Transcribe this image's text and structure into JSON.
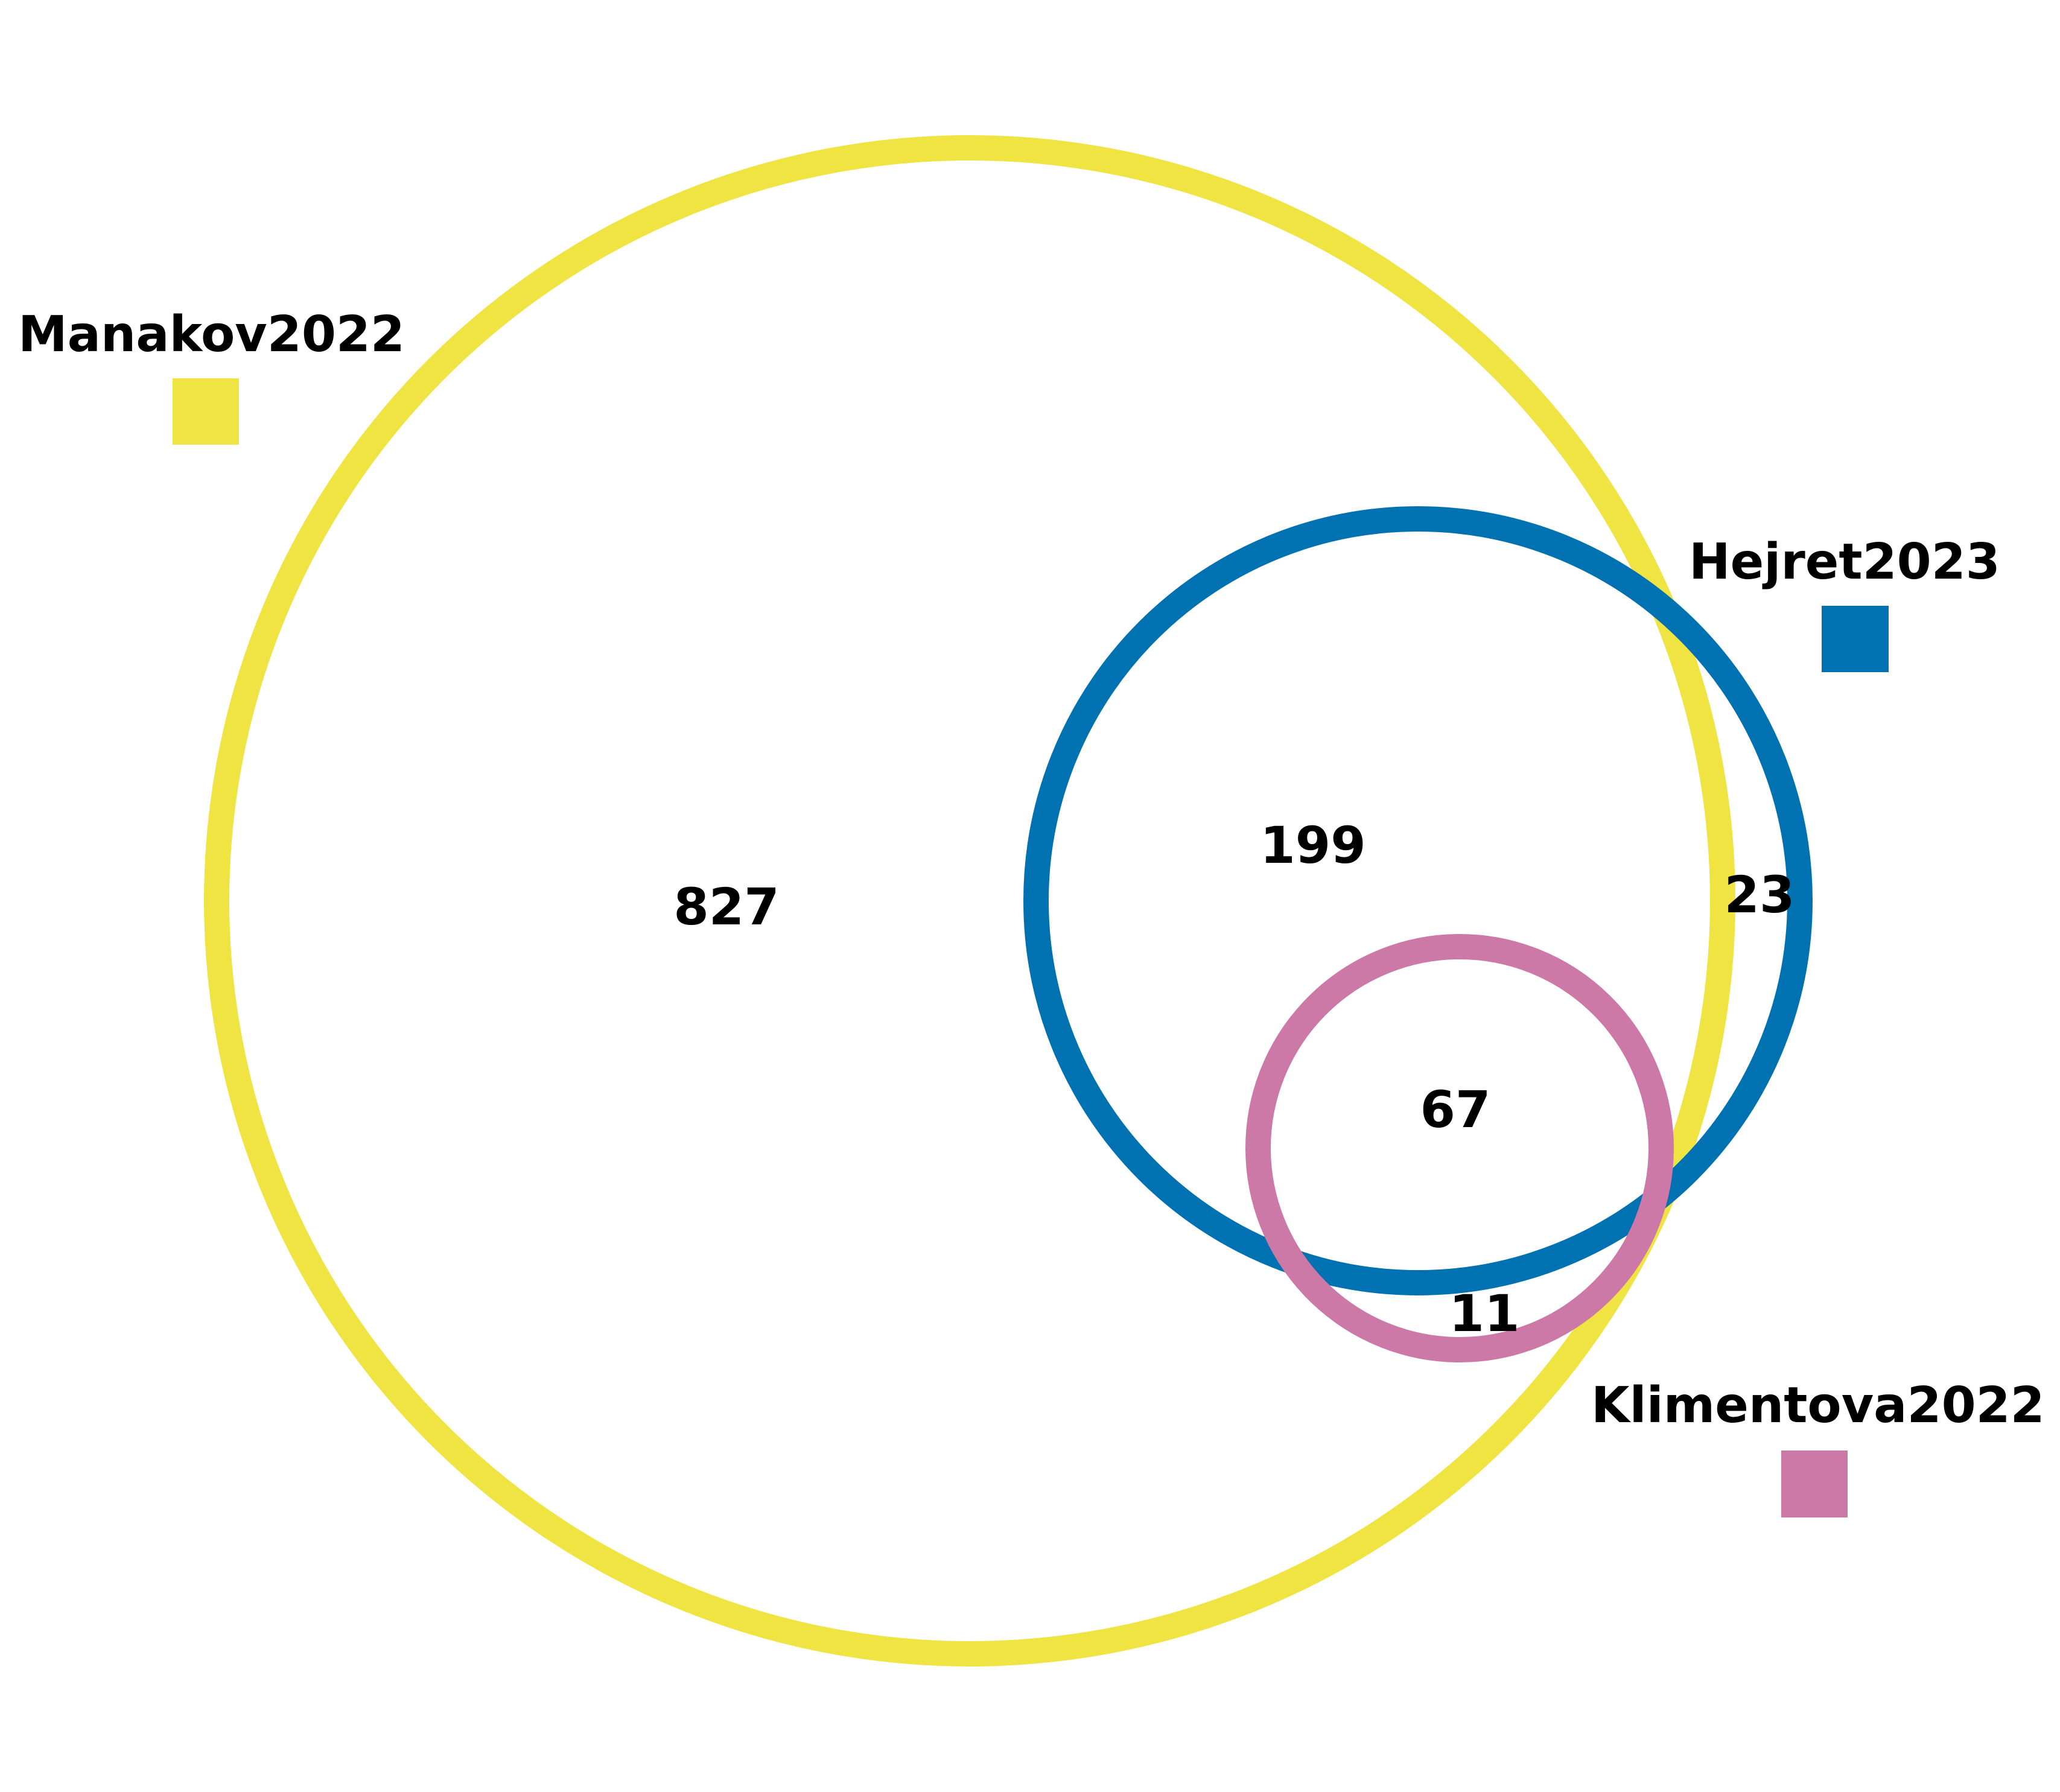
{
  "sets": [
    {
      "name": "Manakov2022",
      "color": "#F0E442"
    },
    {
      "name": "Hejret2023",
      "color": "#0072B2"
    },
    {
      "name": "Klimentova2022",
      "color": "#CC79A7"
    }
  ],
  "regions": {
    "manakov_only": "827",
    "manakov_hejret": "199",
    "hejret_only": "23",
    "all_three": "67",
    "manakov_klimentova": "11"
  }
}
